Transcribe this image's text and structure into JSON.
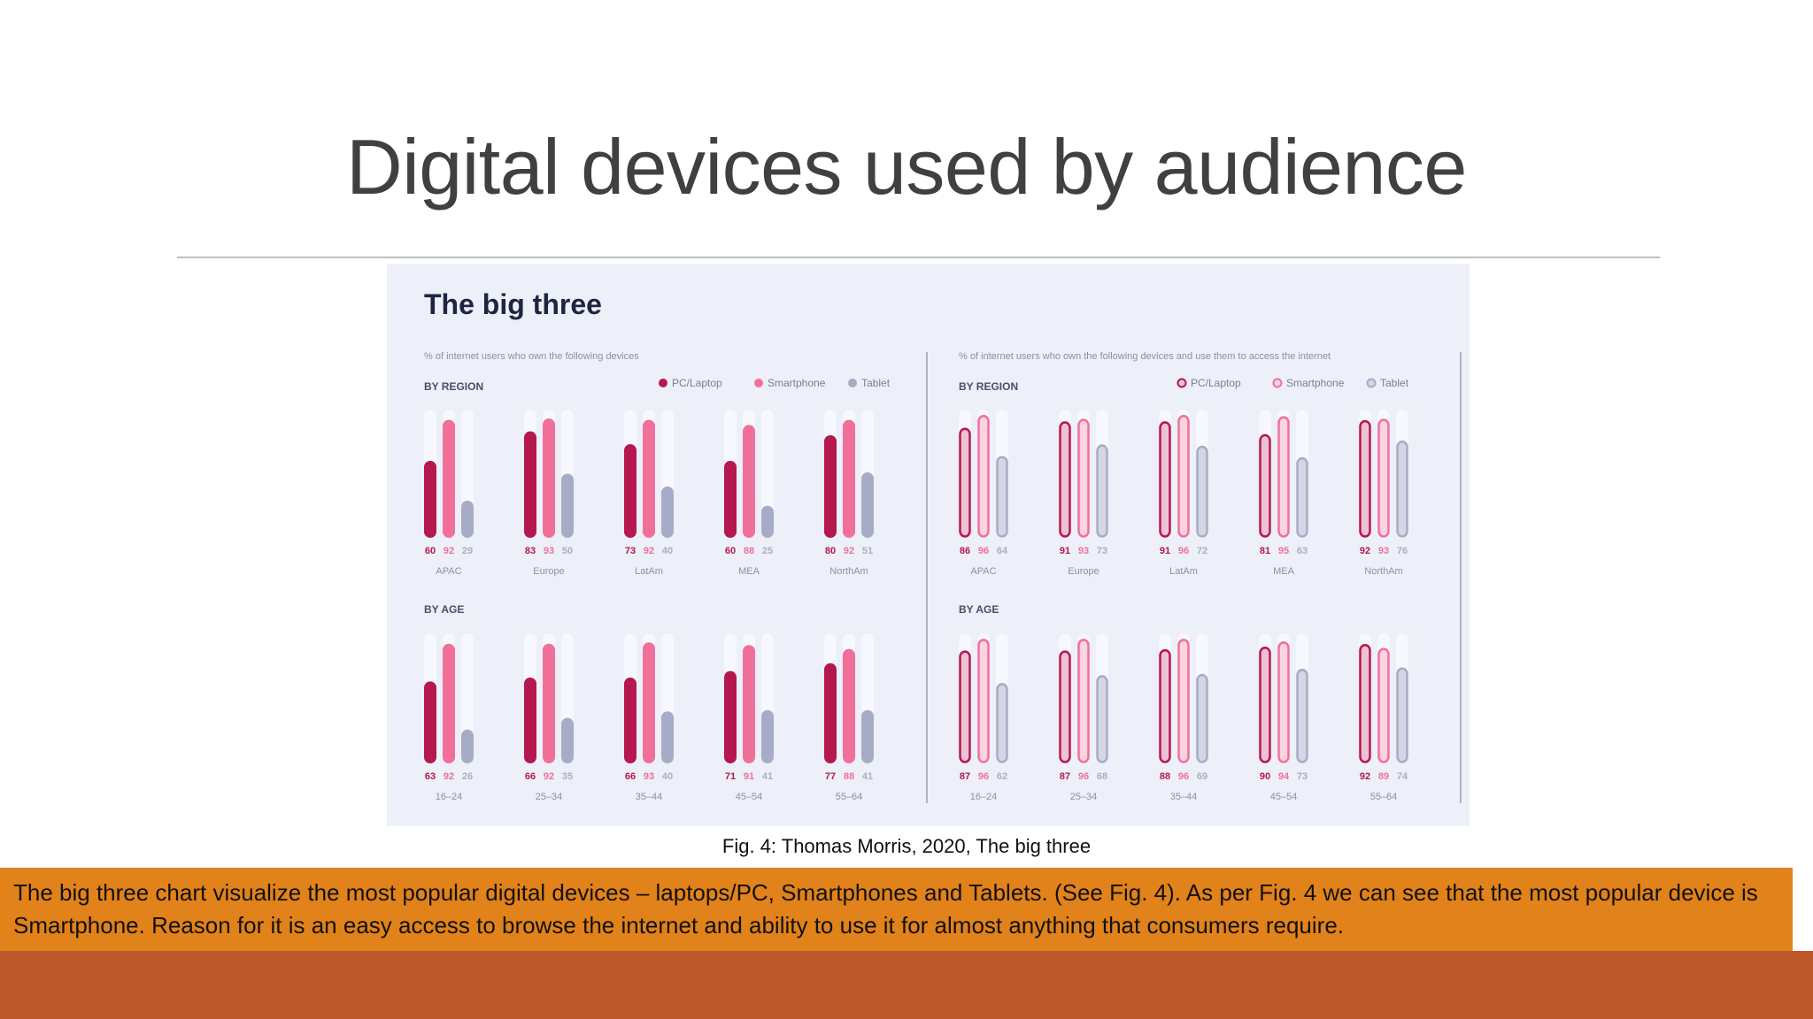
{
  "slide": {
    "title": "Digital devices used by audience",
    "caption": "Fig. 4: Thomas Morris, 2020, The big three",
    "body_text": "The big three chart visualize  the most popular digital devices – laptops/PC, Smartphones and Tablets. (See Fig. 4). As per Fig. 4 we can see that the most popular device is Smartphone. Reason for it is an easy access to browse the internet and ability to use it for almost anything that consumers require."
  },
  "colors": {
    "pc": "#b5174f",
    "smartphone": "#f0709a",
    "tablet": "#a7acc6",
    "track": "#f7f8fd",
    "panel": "#edeff9",
    "orange_band": "#e2821a",
    "footer_band": "#bd582b"
  },
  "chart_data": {
    "type": "bar",
    "title": "The big three",
    "ylim": [
      0,
      100
    ],
    "legend": [
      "PC/Laptop",
      "Smartphone",
      "Tablet"
    ],
    "panels": [
      {
        "subtitle": "% of internet users who own the following devices",
        "style": "solid",
        "groups": [
          {
            "label": "BY REGION",
            "categories": [
              "APAC",
              "Europe",
              "LatAm",
              "MEA",
              "NorthAm"
            ],
            "series": [
              {
                "name": "PC/Laptop",
                "values": [
                  60,
                  83,
                  73,
                  60,
                  80
                ]
              },
              {
                "name": "Smartphone",
                "values": [
                  92,
                  93,
                  92,
                  88,
                  92
                ]
              },
              {
                "name": "Tablet",
                "values": [
                  29,
                  50,
                  40,
                  25,
                  51
                ]
              }
            ]
          },
          {
            "label": "BY AGE",
            "categories": [
              "16–24",
              "25–34",
              "35–44",
              "45–54",
              "55–64"
            ],
            "series": [
              {
                "name": "PC/Laptop",
                "values": [
                  63,
                  66,
                  66,
                  71,
                  77
                ]
              },
              {
                "name": "Smartphone",
                "values": [
                  92,
                  92,
                  93,
                  91,
                  88
                ]
              },
              {
                "name": "Tablet",
                "values": [
                  26,
                  35,
                  40,
                  41,
                  41
                ]
              }
            ]
          }
        ]
      },
      {
        "subtitle": "% of internet users who own the following devices and use them to access the internet",
        "style": "outline",
        "groups": [
          {
            "label": "BY REGION",
            "categories": [
              "APAC",
              "Europe",
              "LatAm",
              "MEA",
              "NorthAm"
            ],
            "series": [
              {
                "name": "PC/Laptop",
                "values": [
                  86,
                  91,
                  91,
                  81,
                  92
                ]
              },
              {
                "name": "Smartphone",
                "values": [
                  96,
                  93,
                  96,
                  95,
                  93
                ]
              },
              {
                "name": "Tablet",
                "values": [
                  64,
                  73,
                  72,
                  63,
                  76
                ]
              }
            ]
          },
          {
            "label": "BY AGE",
            "categories": [
              "16–24",
              "25–34",
              "35–44",
              "45–54",
              "55–64"
            ],
            "series": [
              {
                "name": "PC/Laptop",
                "values": [
                  87,
                  87,
                  88,
                  90,
                  92
                ]
              },
              {
                "name": "Smartphone",
                "values": [
                  96,
                  96,
                  96,
                  94,
                  89
                ]
              },
              {
                "name": "Tablet",
                "values": [
                  62,
                  68,
                  69,
                  73,
                  74
                ]
              }
            ]
          }
        ]
      }
    ]
  }
}
